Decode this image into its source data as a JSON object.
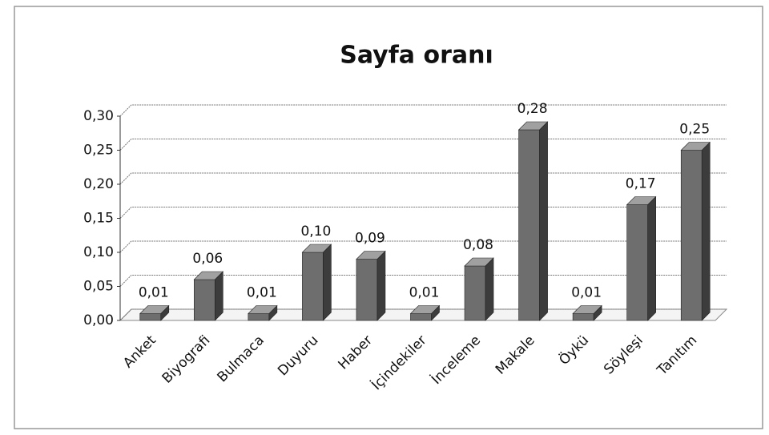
{
  "chart_data": {
    "type": "bar",
    "title": "Sayfa oranı",
    "categories": [
      "Anket",
      "Biyografi",
      "Bulmaca",
      "Duyuru",
      "Haber",
      "İçindekiler",
      "İnceleme",
      "Makale",
      "Öykü",
      "Söyleşi",
      "Tanıtım"
    ],
    "values": [
      0.01,
      0.06,
      0.01,
      0.1,
      0.09,
      0.01,
      0.08,
      0.28,
      0.01,
      0.17,
      0.25
    ],
    "value_labels": [
      "0,01",
      "0,06",
      "0,01",
      "0,10",
      "0,09",
      "0,01",
      "0,08",
      "0,28",
      "0,01",
      "0,17",
      "0,25"
    ],
    "color": "#6e6e6e",
    "ylim": [
      0,
      0.3
    ],
    "yticks": [
      {
        "value": 0,
        "label": "0,00"
      },
      {
        "value": 0.05,
        "label": "0,05"
      },
      {
        "value": 0.1,
        "label": "0,10"
      },
      {
        "value": 0.15,
        "label": "0,15"
      },
      {
        "value": 0.2,
        "label": "0,20"
      },
      {
        "value": 0.25,
        "label": "0,25"
      },
      {
        "value": 0.3,
        "label": "0,30"
      }
    ],
    "grid": true
  }
}
